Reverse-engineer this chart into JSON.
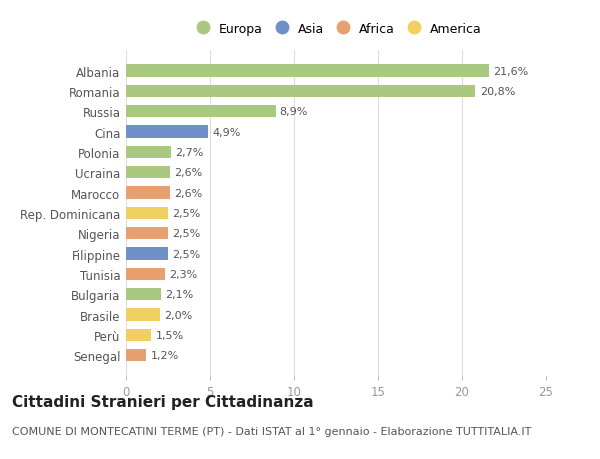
{
  "countries": [
    "Albania",
    "Romania",
    "Russia",
    "Cina",
    "Polonia",
    "Ucraina",
    "Marocco",
    "Rep. Dominicana",
    "Nigeria",
    "Filippine",
    "Tunisia",
    "Bulgaria",
    "Brasile",
    "Perù",
    "Senegal"
  ],
  "values": [
    21.6,
    20.8,
    8.9,
    4.9,
    2.7,
    2.6,
    2.6,
    2.5,
    2.5,
    2.5,
    2.3,
    2.1,
    2.0,
    1.5,
    1.2
  ],
  "labels": [
    "21,6%",
    "20,8%",
    "8,9%",
    "4,9%",
    "2,7%",
    "2,6%",
    "2,6%",
    "2,5%",
    "2,5%",
    "2,5%",
    "2,3%",
    "2,1%",
    "2,0%",
    "1,5%",
    "1,2%"
  ],
  "continents": [
    "Europa",
    "Europa",
    "Europa",
    "Asia",
    "Europa",
    "Europa",
    "Africa",
    "America",
    "Africa",
    "Asia",
    "Africa",
    "Europa",
    "America",
    "America",
    "Africa"
  ],
  "colors": {
    "Europa": "#a8c97f",
    "Asia": "#7090c8",
    "Africa": "#e8a070",
    "America": "#f0d060"
  },
  "legend_order": [
    "Europa",
    "Asia",
    "Africa",
    "America"
  ],
  "background_color": "#ffffff",
  "grid_color": "#dddddd",
  "xlim": [
    0,
    25
  ],
  "xticks": [
    0,
    5,
    10,
    15,
    20,
    25
  ],
  "title": "Cittadini Stranieri per Cittadinanza",
  "subtitle": "COMUNE DI MONTECATINI TERME (PT) - Dati ISTAT al 1° gennaio - Elaborazione TUTTITALIA.IT",
  "title_fontsize": 11,
  "subtitle_fontsize": 8,
  "label_fontsize": 8,
  "bar_height": 0.6
}
